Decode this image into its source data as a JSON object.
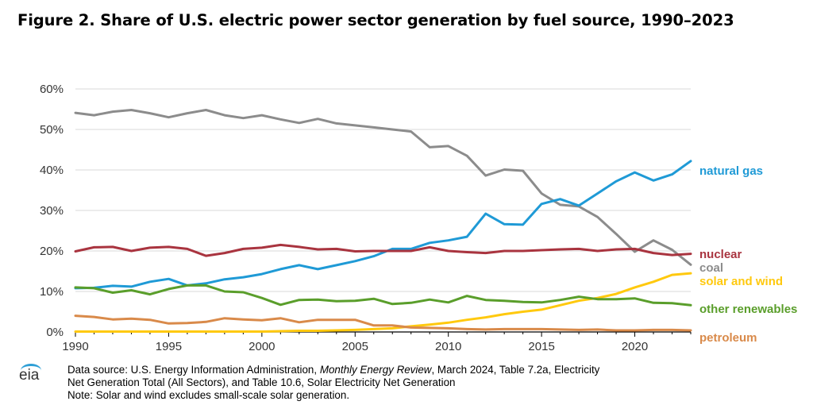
{
  "title": "Figure 2. Share of U.S. electric power sector generation by fuel source, 1990–2023",
  "source": {
    "prefix": "Data source: U.S. Energy Information Administration, ",
    "italic": "Monthly Energy Review",
    "suffix": ", March 2024, Table 7.2a, Electricity",
    "line2": "Net Generation Total (All Sectors), and Table 10.6, Solar Electricity Net Generation",
    "line3": "Note: Solar and wind excludes small-scale solar generation."
  },
  "logo_text": "eia",
  "chart_data": {
    "type": "line",
    "title": "Figure 2. Share of U.S. electric power sector generation by fuel source, 1990–2023",
    "xlabel": "",
    "ylabel": "",
    "xlim": [
      1990,
      2023
    ],
    "ylim": [
      0,
      60
    ],
    "x_ticks": [
      1990,
      1995,
      2000,
      2005,
      2010,
      2015,
      2020
    ],
    "x_tick_labels": [
      "1990",
      "1995",
      "2000",
      "2005",
      "2010",
      "2015",
      "2020"
    ],
    "y_ticks": [
      0,
      10,
      20,
      30,
      40,
      50,
      60
    ],
    "y_tick_labels": [
      "0%",
      "10%",
      "20%",
      "30%",
      "40%",
      "50%",
      "60%"
    ],
    "grid": "horizontal",
    "legend": "direct labels at right end of lines",
    "x": [
      1990,
      1991,
      1992,
      1993,
      1994,
      1995,
      1996,
      1997,
      1998,
      1999,
      2000,
      2001,
      2002,
      2003,
      2004,
      2005,
      2006,
      2007,
      2008,
      2009,
      2010,
      2011,
      2012,
      2013,
      2014,
      2015,
      2016,
      2017,
      2018,
      2019,
      2020,
      2021,
      2022,
      2023
    ],
    "series": [
      {
        "name": "coal",
        "color": "#8c8c8c",
        "values": [
          54.1,
          53.5,
          54.4,
          54.8,
          54.0,
          53.0,
          54.0,
          54.8,
          53.5,
          52.8,
          53.5,
          52.5,
          51.6,
          52.6,
          51.5,
          51.0,
          50.5,
          50.0,
          49.5,
          45.6,
          45.9,
          43.5,
          38.6,
          40.1,
          39.8,
          34.2,
          31.4,
          31.0,
          28.4,
          24.2,
          19.8,
          22.6,
          20.3,
          16.6
        ]
      },
      {
        "name": "natural gas",
        "color": "#1f9ad6",
        "values": [
          10.8,
          10.9,
          11.4,
          11.2,
          12.4,
          13.1,
          11.5,
          12.0,
          13.0,
          13.5,
          14.3,
          15.5,
          16.5,
          15.5,
          16.5,
          17.5,
          18.7,
          20.5,
          20.5,
          22.0,
          22.6,
          23.5,
          29.2,
          26.6,
          26.5,
          31.6,
          32.8,
          31.2,
          34.2,
          37.2,
          39.4,
          37.4,
          38.9,
          42.2
        ]
      },
      {
        "name": "nuclear",
        "color": "#a9343f",
        "values": [
          19.9,
          20.9,
          21.0,
          20.0,
          20.8,
          21.0,
          20.5,
          18.8,
          19.5,
          20.5,
          20.8,
          21.5,
          21.0,
          20.4,
          20.5,
          19.9,
          20.0,
          20.0,
          20.0,
          20.9,
          20.0,
          19.7,
          19.5,
          20.0,
          20.0,
          20.2,
          20.4,
          20.5,
          20.0,
          20.4,
          20.5,
          19.5,
          19.0,
          19.3
        ]
      },
      {
        "name": "solar and wind",
        "color": "#ffc90e",
        "values": [
          0.1,
          0.1,
          0.1,
          0.1,
          0.1,
          0.1,
          0.1,
          0.1,
          0.1,
          0.1,
          0.1,
          0.2,
          0.3,
          0.3,
          0.4,
          0.5,
          0.7,
          0.9,
          1.4,
          1.8,
          2.3,
          3.0,
          3.6,
          4.4,
          5.0,
          5.5,
          6.6,
          7.7,
          8.4,
          9.4,
          11.0,
          12.4,
          14.1,
          14.5
        ]
      },
      {
        "name": "other renewables",
        "color": "#5a9e2b",
        "values": [
          11.0,
          10.8,
          9.7,
          10.3,
          9.3,
          10.6,
          11.5,
          11.5,
          10.0,
          9.8,
          8.4,
          6.7,
          7.9,
          8.0,
          7.6,
          7.7,
          8.2,
          6.9,
          7.2,
          8.0,
          7.3,
          8.9,
          7.9,
          7.7,
          7.4,
          7.3,
          7.9,
          8.7,
          8.1,
          8.1,
          8.3,
          7.2,
          7.1,
          6.6
        ]
      },
      {
        "name": "petroleum",
        "color": "#d98a4a",
        "values": [
          4.0,
          3.7,
          3.1,
          3.3,
          3.0,
          2.1,
          2.2,
          2.5,
          3.4,
          3.1,
          2.9,
          3.4,
          2.4,
          3.0,
          3.0,
          3.0,
          1.6,
          1.6,
          1.1,
          1.0,
          0.9,
          0.7,
          0.6,
          0.7,
          0.7,
          0.7,
          0.6,
          0.5,
          0.6,
          0.4,
          0.4,
          0.5,
          0.5,
          0.4
        ]
      }
    ]
  }
}
